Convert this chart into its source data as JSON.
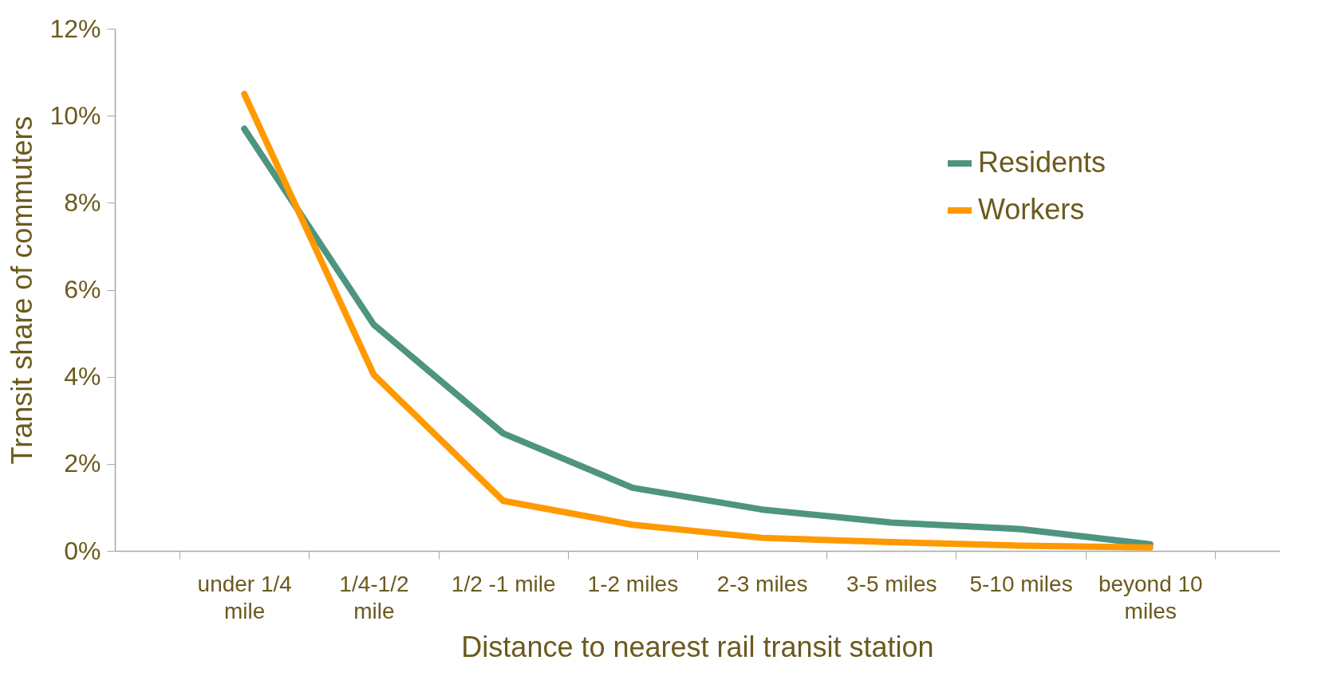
{
  "chart_data": {
    "type": "line",
    "xlabel": "Distance to nearest rail transit station",
    "ylabel": "Transit share of commuters",
    "categories": [
      "under 1/4 mile",
      "1/4-1/2 mile",
      "1/2 -1 mile",
      "1-2 miles",
      "2-3 miles",
      "3-5 miles",
      "5-10 miles",
      "beyond 10 miles"
    ],
    "series": [
      {
        "name": "Residents",
        "color": "#4e9480",
        "values": [
          9.7,
          5.2,
          2.7,
          1.45,
          0.95,
          0.65,
          0.5,
          0.15
        ]
      },
      {
        "name": "Workers",
        "color": "#ff9900",
        "values": [
          10.5,
          4.05,
          1.15,
          0.6,
          0.3,
          0.2,
          0.12,
          0.08
        ]
      }
    ],
    "ylim": [
      0,
      12
    ],
    "yticks": [
      {
        "value": 0,
        "label": "0%"
      },
      {
        "value": 2,
        "label": "2%"
      },
      {
        "value": 4,
        "label": "4%"
      },
      {
        "value": 6,
        "label": "6%"
      },
      {
        "value": 8,
        "label": "8%"
      },
      {
        "value": 10,
        "label": "10%"
      },
      {
        "value": 12,
        "label": "12%"
      }
    ],
    "grid": false,
    "legend": "top right",
    "marker": "none",
    "line_style": "solid"
  }
}
